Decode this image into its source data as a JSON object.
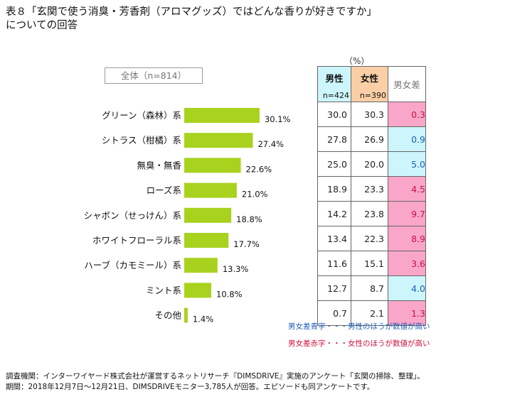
{
  "title_line1": "表８「玄関で使う消臭・芳香剤（アロマグッズ）ではどんな香りが好きですか」",
  "title_line2": "についての回答",
  "total_label": "全体（n=814）",
  "unit_label": "（%）",
  "table": {
    "male_label": "男性",
    "male_n": "n=424",
    "female_label": "女性",
    "female_n": "n=390",
    "diff_label": "男女差",
    "rows": [
      {
        "male": "30.0",
        "female": "30.3",
        "diff": "0.3",
        "color": "pink"
      },
      {
        "male": "27.8",
        "female": "26.9",
        "diff": "0.9",
        "color": "blue"
      },
      {
        "male": "25.0",
        "female": "20.0",
        "diff": "5.0",
        "color": "blue"
      },
      {
        "male": "18.9",
        "female": "23.3",
        "diff": "4.5",
        "color": "pink"
      },
      {
        "male": "14.2",
        "female": "23.8",
        "diff": "9.7",
        "color": "pink"
      },
      {
        "male": "13.4",
        "female": "22.3",
        "diff": "8.9",
        "color": "pink"
      },
      {
        "male": "11.6",
        "female": "15.1",
        "diff": "3.6",
        "color": "pink"
      },
      {
        "male": "12.7",
        "female": "8.7",
        "diff": "4.0",
        "color": "blue"
      },
      {
        "male": "0.7",
        "female": "2.1",
        "diff": "1.3",
        "color": "pink"
      }
    ]
  },
  "chart_data": {
    "type": "bar",
    "orientation": "horizontal",
    "title": "全体（n=814）",
    "categories": [
      "グリーン（森林）系",
      "シトラス（柑橘）系",
      "無臭・無香",
      "ローズ系",
      "シャボン（せっけん）系",
      "ホワイトフローラル系",
      "ハーブ（カモミール）系",
      "ミント系",
      "その他"
    ],
    "values": [
      30.1,
      27.4,
      22.6,
      21.0,
      18.8,
      17.7,
      13.3,
      10.8,
      1.4
    ],
    "value_labels": [
      "30.1%",
      "27.4%",
      "22.6%",
      "21.0%",
      "18.8%",
      "17.7%",
      "13.3%",
      "10.8%",
      "1.4%"
    ],
    "unit": "%",
    "bar_color": "#a8d21e",
    "xlim": [
      0,
      40
    ]
  },
  "notes": {
    "blue": "男女差青字・・・男性のほうが数値が高い",
    "red": "男女差赤字・・・女性のほうが数値が高い"
  },
  "colors": {
    "pink": "#f9a6c9",
    "pink_text": "#d0103c",
    "blue": "#ccf6fb",
    "blue_text": "#1f5fb8",
    "female_header": "#fbcfa6"
  },
  "footer": {
    "line1": "調査機関：インターワイヤード株式会社が運営するネットリサーチ『DIMSDRIVE』実施のアンケート「玄関の掃除、整理」。",
    "line2": "期間：2018年12月7日～12月21日、DIMSDRIVEモニター3,785人が回答。エピソードも同アンケートです。"
  }
}
